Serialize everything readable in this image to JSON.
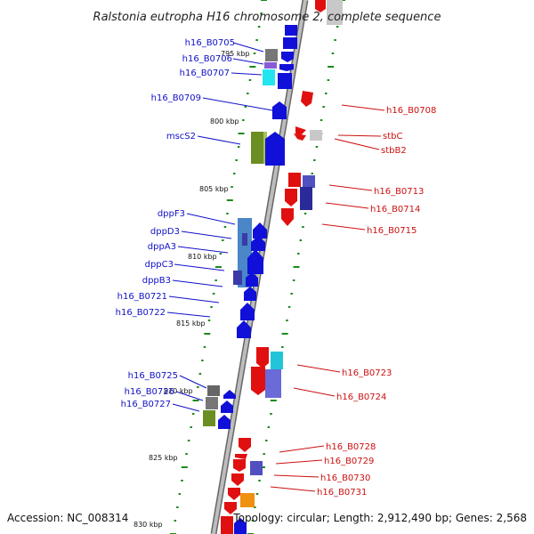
{
  "title": "Ralstonia eutropha H16 chromosome 2, complete sequence",
  "accession": "Accession: NC_008314",
  "topology": "Topology: circular; Length: 2,912,490 bp; Genes: 2,568",
  "colors": {
    "leftStrand": "#1010c8",
    "rightStrand": "#cc1010",
    "tick": "#1a8a1a",
    "backbone": "#999999"
  },
  "kbp_labels": [
    "795 kbp",
    "800 kbp",
    "805 kbp",
    "810 kbp",
    "815 kbp",
    "820 kbp",
    "825 kbp",
    "830 kbp"
  ],
  "left_genes": [
    "h16_B0705",
    "h16_B0706",
    "h16_B0707",
    "h16_B0709",
    "mscS2",
    "dppF3",
    "dppD3",
    "dppA3",
    "dppC3",
    "dppB3",
    "h16_B0721",
    "h16_B0722",
    "h16_B0725",
    "h16_B0726",
    "h16_B0727"
  ],
  "right_genes": [
    "h16_B0708",
    "stbC",
    "stbB2",
    "h16_B0713",
    "h16_B0714",
    "h16_B0715",
    "h16_B0723",
    "h16_B0724",
    "h16_B0728",
    "h16_B0729",
    "h16_B0730",
    "h16_B0731"
  ]
}
